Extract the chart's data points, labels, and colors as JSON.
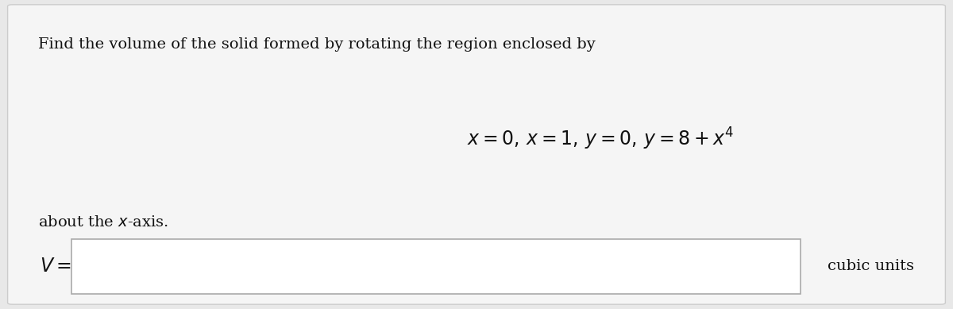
{
  "background_color": "#e8e8e8",
  "card_color": "#f5f5f5",
  "card_border_color": "#cccccc",
  "title_text": "Find the volume of the solid formed by rotating the region enclosed by",
  "formula_text": "$x = 0, \\, x = 1, \\, y = 0, \\, y = 8 + x^4$",
  "about_text": "about the $x$-axis.",
  "v_label": "$V =$",
  "suffix_text": "cubic units",
  "input_box_color": "#ffffff",
  "input_box_border": "#aaaaaa",
  "title_fontsize": 14,
  "formula_fontsize": 17,
  "about_fontsize": 14,
  "v_label_fontsize": 17,
  "suffix_fontsize": 14
}
